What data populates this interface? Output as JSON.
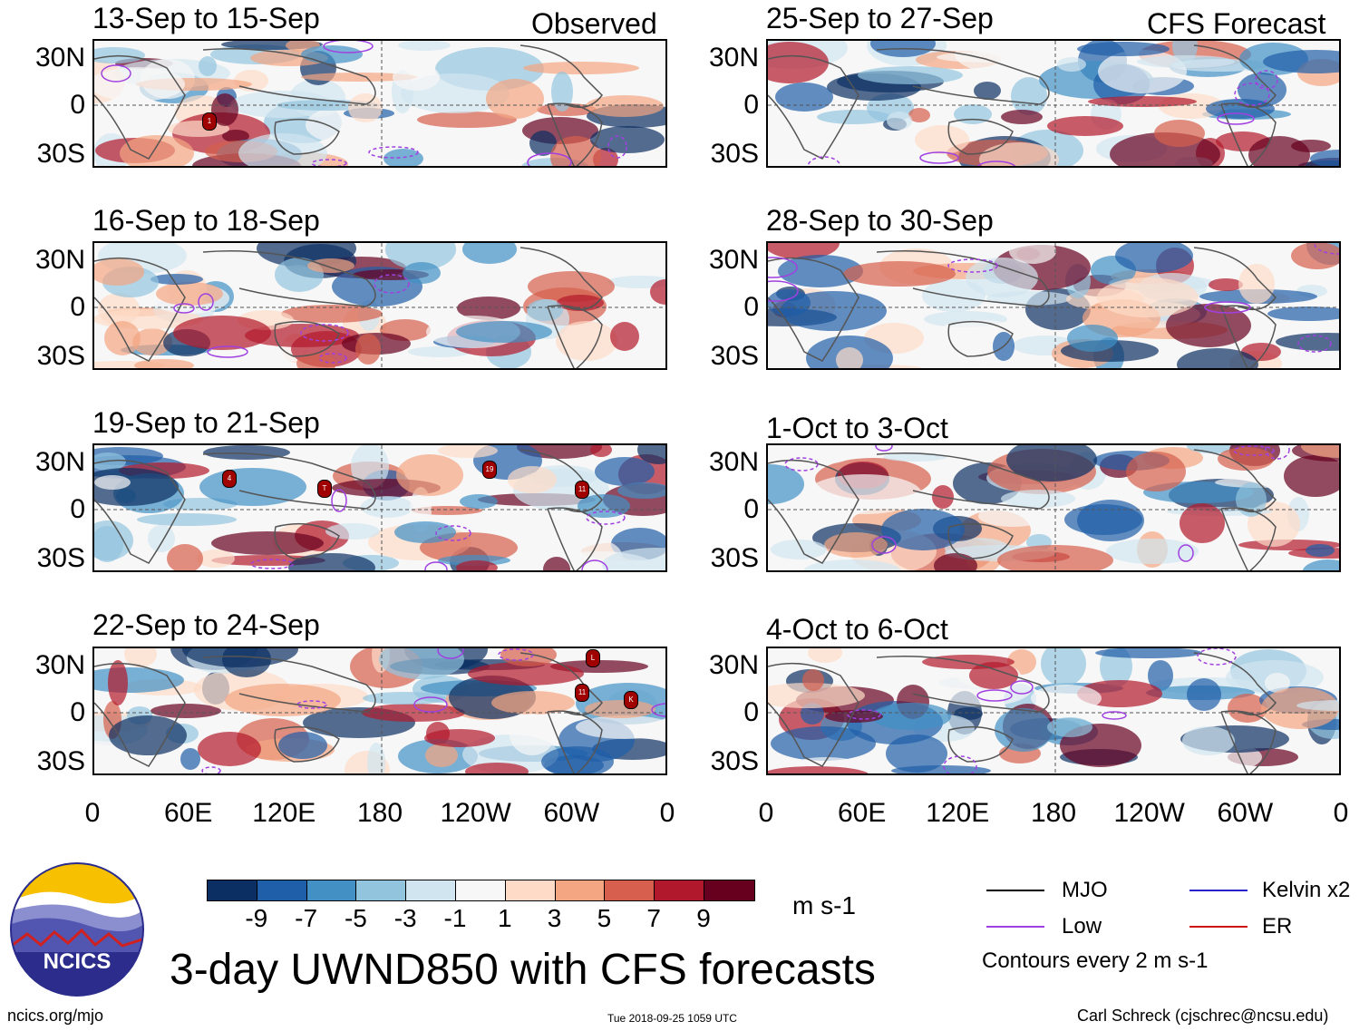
{
  "column_labels": {
    "observed": "Observed",
    "forecast": "CFS Forecast"
  },
  "panels_left": [
    {
      "title": "13-Sep to 15-Sep"
    },
    {
      "title": "16-Sep to 18-Sep"
    },
    {
      "title": "19-Sep to 21-Sep"
    },
    {
      "title": "22-Sep to 24-Sep"
    }
  ],
  "panels_right": [
    {
      "title": "25-Sep to 27-Sep"
    },
    {
      "title": "28-Sep to 30-Sep"
    },
    {
      "title": "1-Oct to 3-Oct"
    },
    {
      "title": "4-Oct to 6-Oct"
    }
  ],
  "lat_labels": [
    "30N",
    "0",
    "30S"
  ],
  "lon_labels": [
    "0",
    "60E",
    "120E",
    "180",
    "120W",
    "60W",
    "0"
  ],
  "storm_markers": [
    {
      "panel": "13-Sep to 15-Sep",
      "label": "1"
    },
    {
      "panel": "19-Sep to 21-Sep",
      "label": "4"
    },
    {
      "panel": "19-Sep to 21-Sep",
      "label": "T"
    },
    {
      "panel": "19-Sep to 21-Sep",
      "label": "19"
    },
    {
      "panel": "19-Sep to 21-Sep",
      "label": "11"
    },
    {
      "panel": "22-Sep to 24-Sep",
      "label": "L"
    },
    {
      "panel": "22-Sep to 24-Sep",
      "label": "11"
    },
    {
      "panel": "22-Sep to 24-Sep",
      "label": "K"
    }
  ],
  "colorbar": {
    "colors": [
      "#0b2f63",
      "#1f5ea8",
      "#4290c4",
      "#93c4de",
      "#d1e5f0",
      "#f7f7f7",
      "#fddbc7",
      "#f4a582",
      "#d6604d",
      "#b2182b",
      "#67001f"
    ],
    "ticks": [
      "-9",
      "-7",
      "-5",
      "-3",
      "-1",
      "1",
      "3",
      "5",
      "7",
      "9"
    ],
    "units": "m s-1"
  },
  "legend": {
    "items": [
      {
        "label": "MJO",
        "color": "#000000"
      },
      {
        "label": "Kelvin x2",
        "color": "#2a22c8"
      },
      {
        "label": "Low",
        "color": "#a040e0"
      },
      {
        "label": "ER",
        "color": "#d01010"
      }
    ],
    "note": "Contours every 2 m s-1"
  },
  "logo_text": "NCICS",
  "main_title": "3-day UWND850 with CFS forecasts",
  "footer": {
    "url": "ncics.org/mjo",
    "timestamp": "Tue 2018-09-25 1059 UTC",
    "credit": "Carl Schreck (cjschrec@ncsu.edu)"
  }
}
